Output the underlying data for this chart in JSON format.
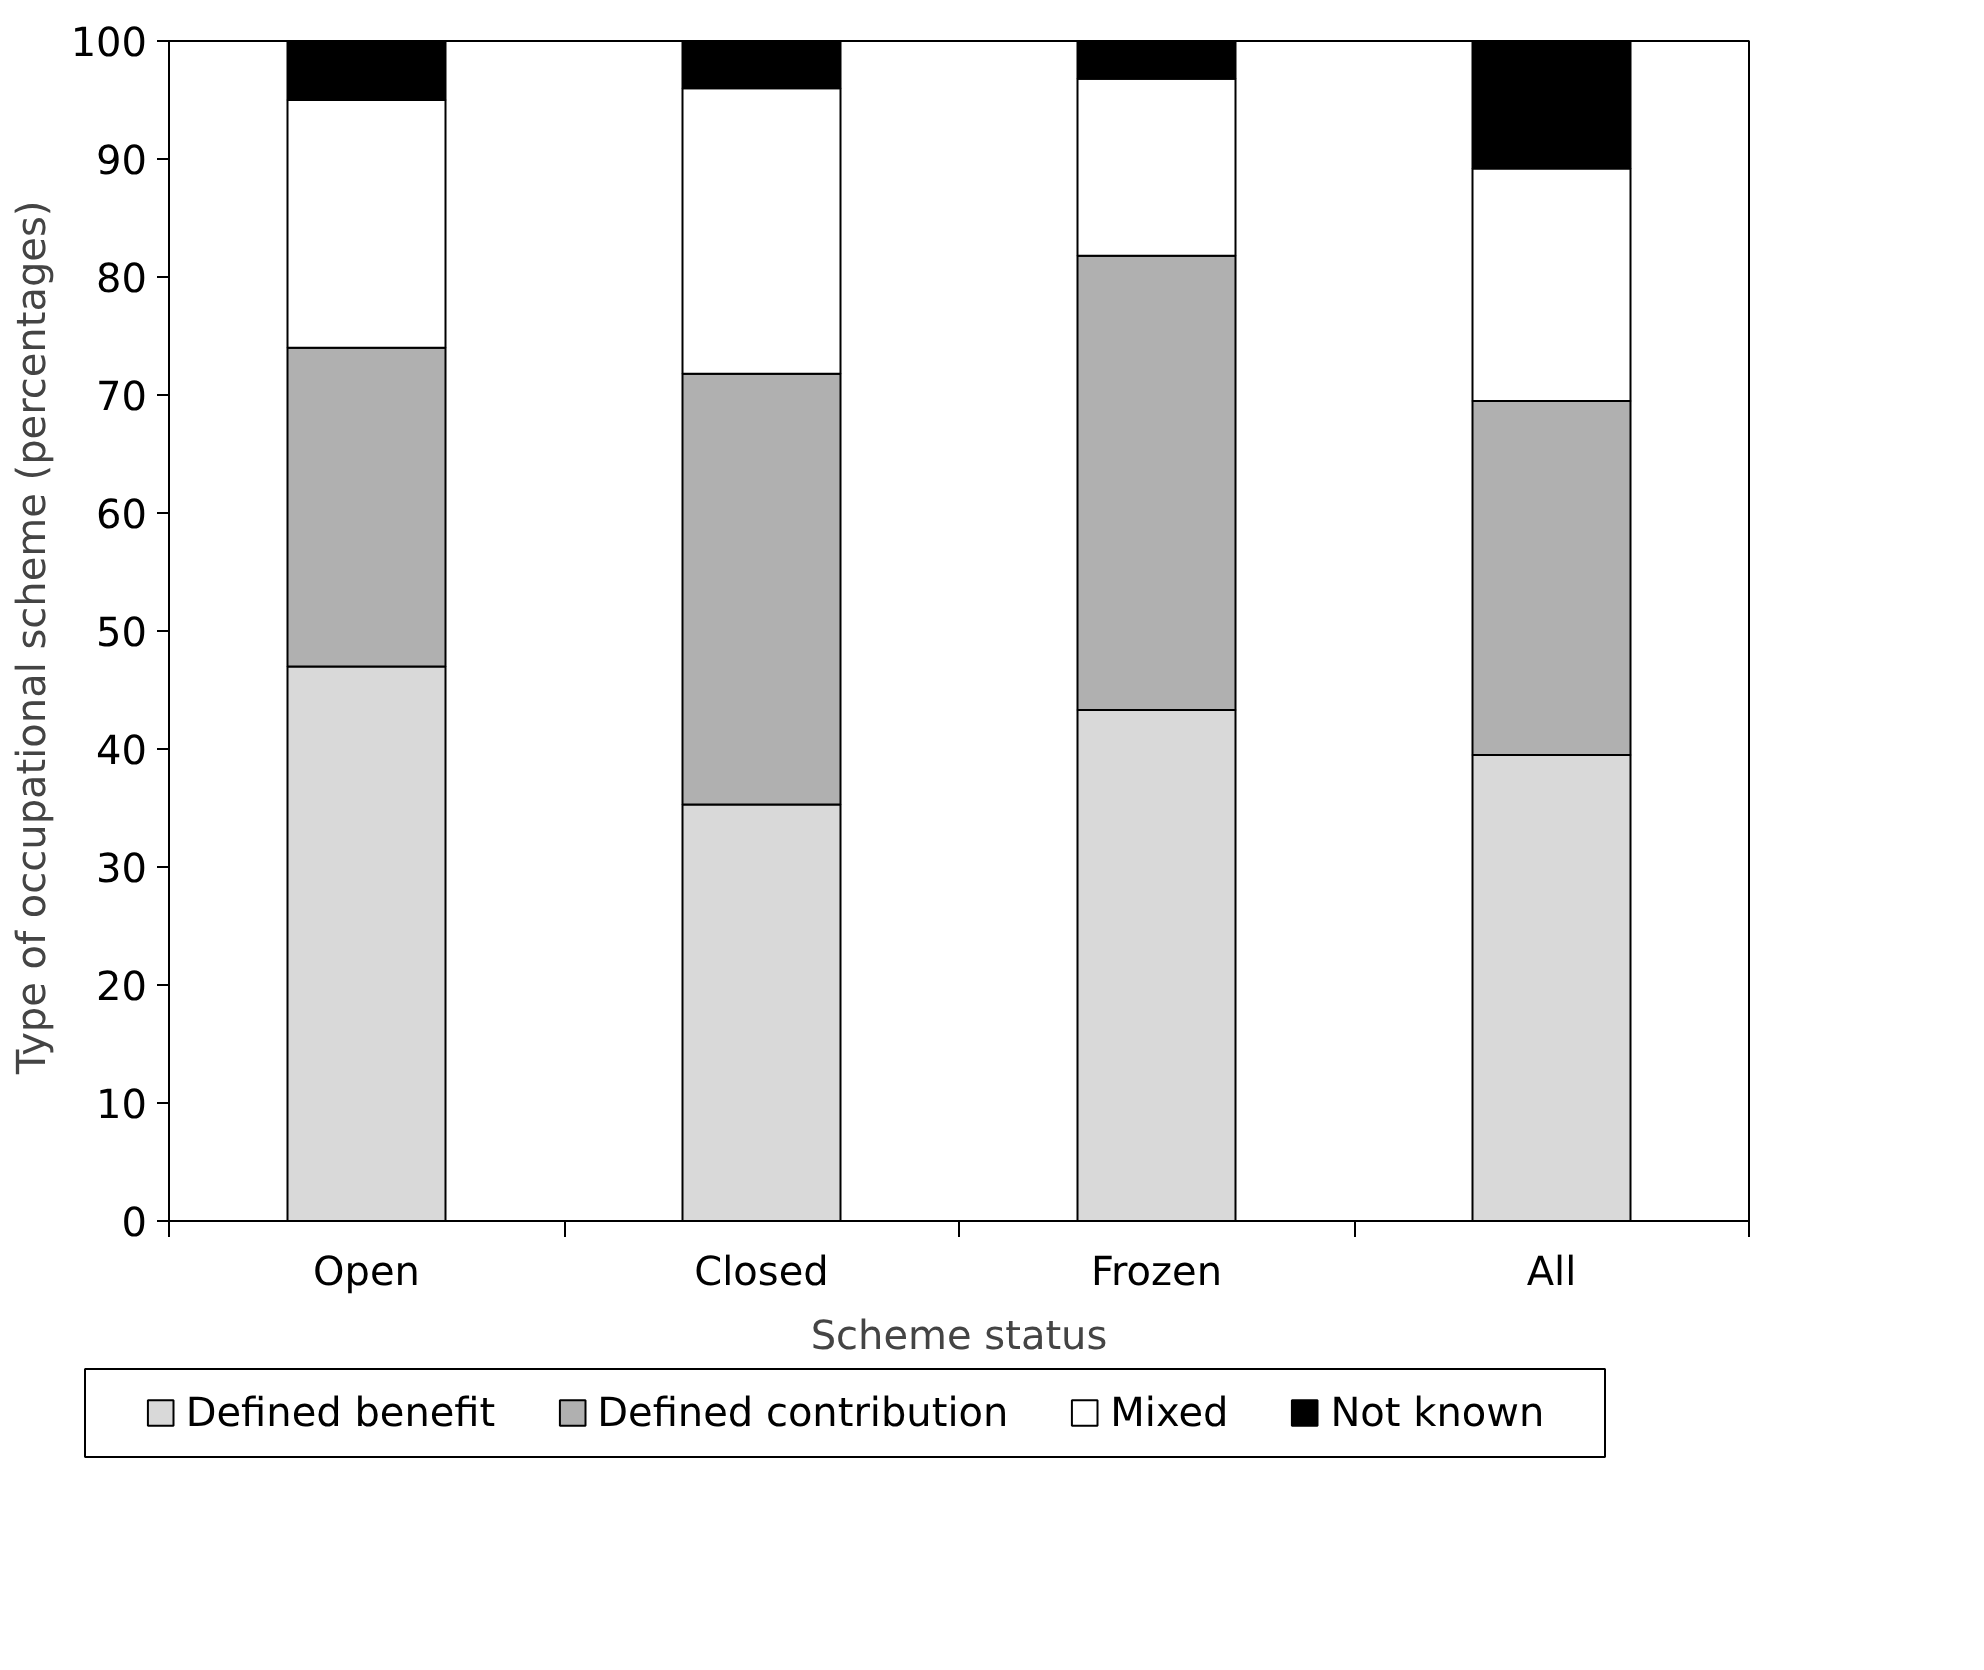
{
  "chart_data": {
    "type": "bar",
    "stacked": true,
    "xlabel": "Scheme status",
    "ylabel": "Type of occupational  scheme (percentages)",
    "categories": [
      "Open",
      "Closed",
      "Frozen",
      "All"
    ],
    "series": [
      {
        "name": "Defined benefit",
        "color": "#d9d9d9",
        "values": [
          47,
          35.3,
          43.3,
          39.5
        ]
      },
      {
        "name": "Defined contribution",
        "color": "#b0b0b0",
        "values": [
          27,
          36.5,
          38.5,
          30
        ]
      },
      {
        "name": "Mixed",
        "color": "#ffffff",
        "values": [
          21,
          24.2,
          15,
          19.7
        ]
      },
      {
        "name": "Not known",
        "color": "#000000",
        "values": [
          5,
          4,
          3.2,
          10.8
        ]
      }
    ],
    "ylim": [
      0,
      100
    ],
    "yticks": [
      0,
      10,
      20,
      30,
      40,
      50,
      60,
      70,
      80,
      90,
      100
    ],
    "grid": false,
    "legend": "bottom"
  }
}
